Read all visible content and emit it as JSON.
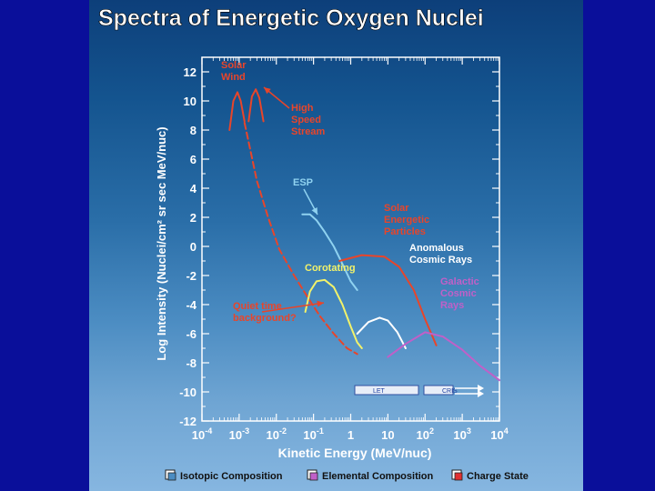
{
  "chart_data": {
    "type": "line",
    "title": "Spectra of Energetic Oxygen Nuclei",
    "xlabel": "Kinetic Energy (MeV/nuc)",
    "ylabel": "Log Intensity (Nuclei/cm² sr sec MeV/nuc)",
    "x_scale": "log",
    "xlim": [
      0.0001,
      10000
    ],
    "ylim": [
      -12,
      13
    ],
    "x_ticks": [
      {
        "value": 0.0001,
        "label": "10-4"
      },
      {
        "value": 0.001,
        "label": "10-3"
      },
      {
        "value": 0.01,
        "label": "10-2"
      },
      {
        "value": 0.1,
        "label": "10-1"
      },
      {
        "value": 1,
        "label": "1"
      },
      {
        "value": 10,
        "label": "10"
      },
      {
        "value": 100,
        "label": "102"
      },
      {
        "value": 1000,
        "label": "103"
      },
      {
        "value": 10000,
        "label": "104"
      }
    ],
    "y_ticks": [
      12,
      10,
      8,
      6,
      4,
      2,
      0,
      -2,
      -4,
      -6,
      -8,
      -10,
      -12
    ],
    "series": [
      {
        "name": "Solar Wind",
        "color": "#e8452a",
        "style": "solid",
        "x": [
          0.00055,
          0.0007,
          0.0009,
          0.0011,
          0.0014
        ],
        "y": [
          8.0,
          10.0,
          10.6,
          10.0,
          8.6
        ]
      },
      {
        "name": "High Speed Stream",
        "color": "#e8452a",
        "style": "solid",
        "x": [
          0.0018,
          0.0022,
          0.0028,
          0.0035,
          0.0045
        ],
        "y": [
          8.6,
          10.3,
          10.8,
          10.2,
          8.6
        ]
      },
      {
        "name": "Quiet time background?",
        "color": "#e8452a",
        "style": "dashed",
        "x": [
          0.0014,
          0.003,
          0.006,
          0.012,
          0.03,
          0.07,
          0.15,
          0.35,
          0.8,
          1.5
        ],
        "y": [
          8.5,
          4.5,
          2.0,
          -0.2,
          -2.0,
          -3.5,
          -4.8,
          -6.0,
          -7.0,
          -7.4
        ]
      },
      {
        "name": "ESP",
        "color": "#8fd2f0",
        "style": "solid",
        "x": [
          0.05,
          0.08,
          0.12,
          0.2,
          0.35,
          0.6,
          1.0,
          1.5
        ],
        "y": [
          2.2,
          2.2,
          1.8,
          1.0,
          0.0,
          -1.2,
          -2.4,
          -3.0
        ]
      },
      {
        "name": "Corotating",
        "color": "#f2f26a",
        "style": "solid",
        "x": [
          0.06,
          0.08,
          0.12,
          0.2,
          0.35,
          0.6,
          1.0,
          1.5,
          2.0
        ],
        "y": [
          -4.5,
          -3.1,
          -2.4,
          -2.3,
          -2.8,
          -4.0,
          -5.5,
          -6.6,
          -7.0
        ]
      },
      {
        "name": "Solar Energetic Particles",
        "color": "#e8452a",
        "style": "solid",
        "x": [
          0.5,
          2,
          8,
          20,
          50,
          100,
          200
        ],
        "y": [
          -1.0,
          -0.6,
          -0.7,
          -1.4,
          -3.0,
          -5.0,
          -6.8
        ]
      },
      {
        "name": "Anomalous Cosmic Rays",
        "color": "#ffffff",
        "style": "solid",
        "x": [
          1.5,
          3,
          6,
          10,
          18,
          30
        ],
        "y": [
          -6.0,
          -5.2,
          -4.9,
          -5.1,
          -5.9,
          -7.0
        ]
      },
      {
        "name": "Galactic Cosmic Rays",
        "color": "#c060c8",
        "style": "solid",
        "x": [
          10,
          30,
          100,
          300,
          1000,
          3000,
          10000
        ],
        "y": [
          -7.6,
          -6.7,
          -5.9,
          -6.2,
          -7.1,
          -8.2,
          -9.2
        ]
      }
    ],
    "annotations": [
      {
        "text_lines": [
          "Solar",
          "Wind"
        ],
        "color": "#e8452a"
      },
      {
        "text_lines": [
          "High",
          "Speed",
          "Stream"
        ],
        "color": "#e8452a"
      },
      {
        "text_lines": [
          "ESP"
        ],
        "color": "#8fd2f0"
      },
      {
        "text_lines": [
          "Solar",
          "Energetic",
          "Particles"
        ],
        "color": "#e8452a"
      },
      {
        "text_lines": [
          "Anomalous",
          "Cosmic Rays"
        ],
        "color": "#ffffff"
      },
      {
        "text_lines": [
          "Corotating"
        ],
        "color": "#f2f26a"
      },
      {
        "text_lines": [
          "Galactic",
          "Cosmic",
          "Rays"
        ],
        "color": "#c060c8"
      },
      {
        "text_lines": [
          "Quiet time",
          "background?"
        ],
        "color": "#e8452a"
      }
    ],
    "instrument_bars": [
      {
        "label": "LET"
      },
      {
        "label": "CRIS"
      }
    ],
    "legend": {
      "placement": "bottom",
      "entries": [
        {
          "label": "Isotopic Composition",
          "icon_color": "#4b8cc2"
        },
        {
          "label": "Elemental Composition",
          "icon_color": "#c060c8"
        },
        {
          "label": "Charge State",
          "icon_color": "#e03030"
        }
      ]
    }
  }
}
